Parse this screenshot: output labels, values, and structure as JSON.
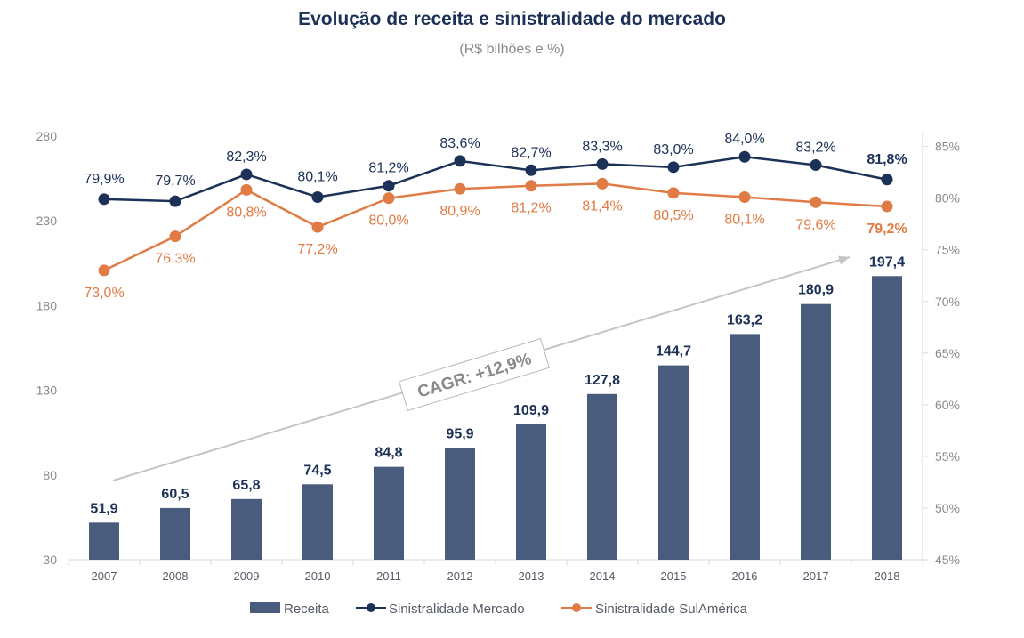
{
  "title": "Evolução de receita e sinistralidade do mercado",
  "subtitle": "(R$ bilhões e %)",
  "colors": {
    "bar": "#4a5c7d",
    "mercado": "#1c3157",
    "sulamerica": "#e07b45",
    "axis": "#d7d9e2"
  },
  "chart_data": {
    "type": "bar",
    "categories": [
      "2007",
      "2008",
      "2009",
      "2010",
      "2011",
      "2012",
      "2013",
      "2014",
      "2015",
      "2016",
      "2017",
      "2018"
    ],
    "y_left": {
      "ylim": [
        30,
        280
      ],
      "ticks": [
        "30",
        "80",
        "130",
        "180",
        "230",
        "280"
      ]
    },
    "y_right": {
      "ylim": [
        45,
        86
      ],
      "ticks": [
        "45%",
        "50%",
        "55%",
        "60%",
        "65%",
        "70%",
        "75%",
        "80%",
        "85%"
      ]
    },
    "series": [
      {
        "name": "Receita",
        "type": "bar",
        "axis": "left",
        "values": [
          51.9,
          60.5,
          65.8,
          74.5,
          84.8,
          95.9,
          109.9,
          127.8,
          144.7,
          163.2,
          180.9,
          197.4
        ],
        "labels": [
          "51,9",
          "60,5",
          "65,8",
          "74,5",
          "84,8",
          "95,9",
          "109,9",
          "127,8",
          "144,7",
          "163,2",
          "180,9",
          "197,4"
        ]
      },
      {
        "name": "Sinistralidade Mercado",
        "type": "line",
        "axis": "right",
        "values": [
          79.9,
          79.7,
          82.3,
          80.1,
          81.2,
          83.6,
          82.7,
          83.3,
          83.0,
          84.0,
          83.2,
          81.8
        ],
        "labels": [
          "79,9%",
          "79,7%",
          "82,3%",
          "80,1%",
          "81,2%",
          "83,6%",
          "82,7%",
          "83,3%",
          "83,0%",
          "84,0%",
          "83,2%",
          "81,8%"
        ]
      },
      {
        "name": "Sinistralidade SulAmérica",
        "type": "line",
        "axis": "right",
        "values": [
          73.0,
          76.3,
          80.8,
          77.2,
          80.0,
          80.9,
          81.2,
          81.4,
          80.5,
          80.1,
          79.6,
          79.2
        ],
        "labels": [
          "73,0%",
          "76,3%",
          "80,8%",
          "77,2%",
          "80,0%",
          "80,9%",
          "81,2%",
          "81,4%",
          "80,5%",
          "80,1%",
          "79,6%",
          "79,2%"
        ]
      }
    ],
    "annotation": "CAGR: +12,9%",
    "legend_position": "bottom"
  }
}
